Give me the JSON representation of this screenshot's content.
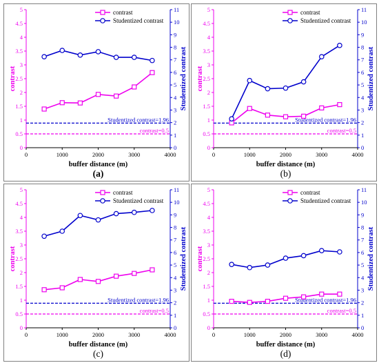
{
  "chart_data": [
    {
      "type": "line",
      "panel_label": "(a)",
      "x": [
        500,
        1000,
        1500,
        2000,
        2500,
        3000,
        3500
      ],
      "xlabel": "buffer distance (m)",
      "xlim": [
        0,
        4000
      ],
      "xticks": [
        0,
        1000,
        2000,
        3000,
        4000
      ],
      "ylabel_left": "contrast",
      "ylim_left": [
        0,
        5
      ],
      "yticks_left": [
        0,
        0.5,
        1,
        1.5,
        2,
        2.5,
        3,
        3.5,
        4,
        4.5,
        5
      ],
      "ylabel_right": "Studentized contrast",
      "ylim_right": [
        0,
        11
      ],
      "yticks_right": [
        0,
        1,
        2,
        3,
        4,
        5,
        6,
        7,
        8,
        9,
        10,
        11
      ],
      "series": [
        {
          "name": "contrast",
          "axis": "left",
          "color": "#ee00ee",
          "marker": "square",
          "values": [
            1.4,
            1.63,
            1.62,
            1.93,
            1.87,
            2.2,
            2.72
          ]
        },
        {
          "name": "Studentized contrast",
          "axis": "right",
          "color": "#0000cc",
          "marker": "circle",
          "values": [
            7.25,
            7.75,
            7.38,
            7.65,
            7.2,
            7.2,
            6.95
          ]
        }
      ],
      "reference_lines": [
        {
          "label": "Studentized contrast=1.96",
          "axis": "right",
          "value": 1.96,
          "color": "#0000cc"
        },
        {
          "label": "contrast=0.5",
          "axis": "left",
          "value": 0.5,
          "color": "#ee00ee"
        }
      ],
      "legend": "top-right",
      "grid": false
    },
    {
      "type": "line",
      "panel_label": "(b)",
      "x": [
        500,
        1000,
        1500,
        2000,
        2500,
        3000,
        3500
      ],
      "xlabel": "buffer distance (m)",
      "xlim": [
        0,
        4000
      ],
      "xticks": [
        0,
        1000,
        2000,
        3000,
        4000
      ],
      "ylabel_left": "contrast",
      "ylim_left": [
        0,
        5
      ],
      "yticks_left": [
        0,
        0.5,
        1,
        1.5,
        2,
        2.5,
        3,
        3.5,
        4,
        4.5,
        5
      ],
      "ylabel_right": "Studentized contrast",
      "ylim_right": [
        0,
        11
      ],
      "yticks_right": [
        0,
        1,
        2,
        3,
        4,
        5,
        6,
        7,
        8,
        9,
        10,
        11
      ],
      "series": [
        {
          "name": "contrast",
          "axis": "left",
          "color": "#ee00ee",
          "marker": "square",
          "values": [
            0.9,
            1.42,
            1.18,
            1.12,
            1.14,
            1.44,
            1.56
          ]
        },
        {
          "name": "Studentized contrast",
          "axis": "right",
          "color": "#0000cc",
          "marker": "circle",
          "values": [
            2.3,
            5.35,
            4.7,
            4.75,
            5.25,
            7.25,
            8.15
          ]
        }
      ],
      "reference_lines": [
        {
          "label": "Studentized contrast=1.96",
          "axis": "right",
          "value": 1.96,
          "color": "#0000cc"
        },
        {
          "label": "contrast=0.5",
          "axis": "left",
          "value": 0.5,
          "color": "#ee00ee"
        }
      ],
      "legend": "top-right",
      "grid": false
    },
    {
      "type": "line",
      "panel_label": "(c)",
      "x": [
        500,
        1000,
        1500,
        2000,
        2500,
        3000,
        3500
      ],
      "xlabel": "buffer distance (m)",
      "xlim": [
        0,
        4000
      ],
      "xticks": [
        0,
        1000,
        2000,
        3000,
        4000
      ],
      "ylabel_left": "contrast",
      "ylim_left": [
        0,
        5
      ],
      "yticks_left": [
        0,
        0.5,
        1,
        1.5,
        2,
        2.5,
        3,
        3.5,
        4,
        4.5,
        5
      ],
      "ylabel_right": "Studentized contrast",
      "ylim_right": [
        0,
        11
      ],
      "yticks_right": [
        0,
        1,
        2,
        3,
        4,
        5,
        6,
        7,
        8,
        9,
        10,
        11
      ],
      "series": [
        {
          "name": "contrast",
          "axis": "left",
          "color": "#ee00ee",
          "marker": "square",
          "values": [
            1.38,
            1.45,
            1.75,
            1.68,
            1.87,
            1.97,
            2.1
          ]
        },
        {
          "name": "Studentized contrast",
          "axis": "right",
          "color": "#0000cc",
          "marker": "circle",
          "values": [
            7.3,
            7.7,
            8.95,
            8.6,
            9.1,
            9.2,
            9.35
          ]
        }
      ],
      "reference_lines": [
        {
          "label": "Studentized contrast=1.96",
          "axis": "right",
          "value": 1.96,
          "color": "#0000cc"
        },
        {
          "label": "contrast=0.5",
          "axis": "left",
          "value": 0.5,
          "color": "#ee00ee"
        }
      ],
      "legend": "top-right",
      "grid": false
    },
    {
      "type": "line",
      "panel_label": "(d)",
      "x": [
        500,
        1000,
        1500,
        2000,
        2500,
        3000,
        3500
      ],
      "xlabel": "buffer distance (m)",
      "xlim": [
        0,
        4000
      ],
      "xticks": [
        0,
        1000,
        2000,
        3000,
        4000
      ],
      "ylabel_left": "contrast",
      "ylim_left": [
        0,
        5
      ],
      "yticks_left": [
        0,
        0.5,
        1,
        1.5,
        2,
        2.5,
        3,
        3.5,
        4,
        4.5,
        5
      ],
      "ylabel_right": "Studentized contrast",
      "ylim_right": [
        0,
        11
      ],
      "yticks_right": [
        0,
        1,
        2,
        3,
        4,
        5,
        6,
        7,
        8,
        9,
        10,
        11
      ],
      "series": [
        {
          "name": "contrast",
          "axis": "left",
          "color": "#ee00ee",
          "marker": "square",
          "values": [
            0.96,
            0.92,
            0.96,
            1.07,
            1.12,
            1.22,
            1.22
          ]
        },
        {
          "name": "Studentized contrast",
          "axis": "right",
          "color": "#0000cc",
          "marker": "circle",
          "values": [
            5.05,
            4.8,
            5.0,
            5.55,
            5.75,
            6.15,
            6.05
          ]
        }
      ],
      "reference_lines": [
        {
          "label": "Studentized contrast=1.96",
          "axis": "right",
          "value": 1.96,
          "color": "#0000cc"
        },
        {
          "label": "contrast=0.5",
          "axis": "left",
          "value": 0.5,
          "color": "#ee00ee"
        }
      ],
      "legend": "top-right",
      "grid": false
    }
  ]
}
